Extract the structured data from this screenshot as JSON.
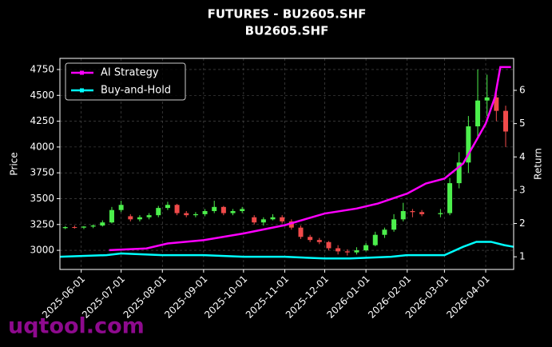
{
  "chart_data": {
    "type": "candlestick",
    "title": "FUTURES - BU2605.SHF",
    "subtitle": "BU2605.SHF",
    "ylabel": "Price",
    "y2label": "Return",
    "watermark": "uqtool.com",
    "up_color": "#4cef4c",
    "down_color": "#f04a4a",
    "grid": true,
    "legend": "upper left",
    "x": [
      "2025-05-20",
      "2025-05-27",
      "2025-06-03",
      "2025-06-10",
      "2025-06-17",
      "2025-06-24",
      "2025-07-01",
      "2025-07-08",
      "2025-07-15",
      "2025-07-22",
      "2025-07-29",
      "2025-08-05",
      "2025-08-12",
      "2025-08-19",
      "2025-08-26",
      "2025-09-02",
      "2025-09-09",
      "2025-09-16",
      "2025-09-23",
      "2025-09-30",
      "2025-10-09",
      "2025-10-16",
      "2025-10-23",
      "2025-10-30",
      "2025-11-06",
      "2025-11-13",
      "2025-11-20",
      "2025-11-27",
      "2025-12-04",
      "2025-12-11",
      "2025-12-18",
      "2025-12-25",
      "2026-01-01",
      "2026-01-08",
      "2026-01-15",
      "2026-01-22",
      "2026-01-29",
      "2026-02-05",
      "2026-02-12",
      "2026-02-26",
      "2026-03-05",
      "2026-03-12",
      "2026-03-19",
      "2026-03-26",
      "2026-04-02",
      "2026-04-09",
      "2026-04-16"
    ],
    "open": [
      3215,
      3225,
      3220,
      3230,
      3240,
      3270,
      3390,
      3330,
      3300,
      3320,
      3340,
      3410,
      3440,
      3360,
      3340,
      3350,
      3380,
      3420,
      3360,
      3380,
      3320,
      3270,
      3300,
      3320,
      3280,
      3220,
      3130,
      3100,
      3080,
      3020,
      2990,
      2980,
      3000,
      3050,
      3150,
      3200,
      3300,
      3380,
      3370,
      3350,
      3360,
      3650,
      3850,
      4200,
      4450,
      4480,
      4350
    ],
    "high": [
      3235,
      3240,
      3235,
      3250,
      3290,
      3420,
      3480,
      3350,
      3340,
      3360,
      3430,
      3470,
      3450,
      3380,
      3370,
      3400,
      3480,
      3430,
      3400,
      3420,
      3340,
      3320,
      3350,
      3340,
      3300,
      3240,
      3150,
      3120,
      3090,
      3050,
      3010,
      3030,
      3070,
      3180,
      3220,
      3350,
      3460,
      3400,
      3390,
      3400,
      3700,
      3950,
      4300,
      4750,
      4700,
      4550,
      4400
    ],
    "low": [
      3205,
      3210,
      3205,
      3215,
      3230,
      3260,
      3370,
      3280,
      3280,
      3300,
      3320,
      3390,
      3340,
      3320,
      3320,
      3330,
      3360,
      3340,
      3340,
      3360,
      3250,
      3240,
      3290,
      3260,
      3200,
      3110,
      3080,
      3060,
      3000,
      2960,
      2950,
      2960,
      2990,
      3040,
      3120,
      3180,
      3280,
      3320,
      3330,
      3320,
      3340,
      3600,
      3750,
      4100,
      4300,
      4250,
      4000
    ],
    "close": [
      3225,
      3220,
      3230,
      3240,
      3270,
      3390,
      3440,
      3300,
      3320,
      3340,
      3410,
      3440,
      3360,
      3340,
      3350,
      3380,
      3420,
      3360,
      3380,
      3400,
      3270,
      3300,
      3320,
      3280,
      3220,
      3130,
      3100,
      3080,
      3020,
      2990,
      2980,
      3000,
      3050,
      3150,
      3200,
      3300,
      3380,
      3370,
      3350,
      3360,
      3650,
      3850,
      4200,
      4450,
      4480,
      4350,
      4150
    ],
    "series": [
      {
        "name": "AI Strategy",
        "color": "#ff00ff",
        "axis": "y2",
        "x": [
          "2025-06-22",
          "2025-07-20",
          "2025-08-05",
          "2025-09-01",
          "2025-10-01",
          "2025-11-01",
          "2025-12-01",
          "2025-12-25",
          "2026-01-10",
          "2026-02-01",
          "2026-02-15",
          "2026-03-01",
          "2026-03-15",
          "2026-03-25",
          "2026-04-01",
          "2026-04-08",
          "2026-04-12",
          "2026-04-20"
        ],
        "values": [
          1.2,
          1.25,
          1.4,
          1.5,
          1.7,
          1.95,
          2.3,
          2.45,
          2.6,
          2.9,
          3.2,
          3.35,
          3.8,
          4.5,
          5.0,
          5.8,
          6.7,
          6.7
        ]
      },
      {
        "name": "Buy-and-Hold",
        "color": "#00ffff",
        "axis": "y2",
        "x": [
          "2025-05-16",
          "2025-06-20",
          "2025-07-01",
          "2025-08-01",
          "2025-09-01",
          "2025-10-01",
          "2025-11-01",
          "2025-12-01",
          "2025-12-20",
          "2026-01-20",
          "2026-02-01",
          "2026-03-01",
          "2026-03-15",
          "2026-03-25",
          "2026-04-05",
          "2026-04-15",
          "2026-04-22"
        ],
        "values": [
          1.0,
          1.05,
          1.1,
          1.05,
          1.05,
          1.0,
          1.0,
          0.95,
          0.95,
          1.0,
          1.05,
          1.05,
          1.3,
          1.45,
          1.45,
          1.35,
          1.3
        ]
      }
    ],
    "xlim": [
      "2025-05-16",
      "2026-04-22"
    ],
    "xticks": [
      "2025-06-01",
      "2025-07-01",
      "2025-08-01",
      "2025-09-01",
      "2025-10-01",
      "2025-11-01",
      "2025-12-01",
      "2026-01-01",
      "2026-02-01",
      "2026-03-01",
      "2026-04-01"
    ],
    "ylim": [
      2815,
      4858
    ],
    "yticks": [
      3000,
      3250,
      3500,
      3750,
      4000,
      4250,
      4500,
      4750
    ],
    "y2lim": [
      0.62,
      6.96
    ],
    "y2ticks": [
      1,
      2,
      3,
      4,
      5,
      6
    ]
  }
}
